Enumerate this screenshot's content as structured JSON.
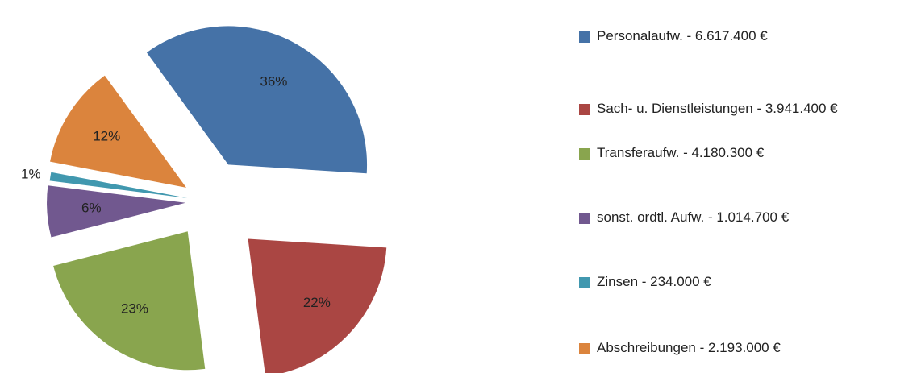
{
  "chart_data": {
    "type": "pie",
    "categories": [
      "Personalaufw. - 6.617.400 €",
      "Sach- u. Dienstleistungen - 3.941.400 €",
      "Transferaufw.  - 4.180.300 €",
      "sonst. ordtl. Aufw.  - 1.014.700 €",
      "Zinsen - 234.000 €",
      "Abschreibungen - 2.193.000 €"
    ],
    "values": [
      36,
      22,
      23,
      6,
      1,
      12
    ],
    "value_labels": [
      "36%",
      "22%",
      "23%",
      "6%",
      "1%",
      "12%"
    ],
    "colors": [
      "#4572a7",
      "#aa4643",
      "#89a54e",
      "#71588f",
      "#4198af",
      "#db843d"
    ],
    "legend": "right"
  }
}
